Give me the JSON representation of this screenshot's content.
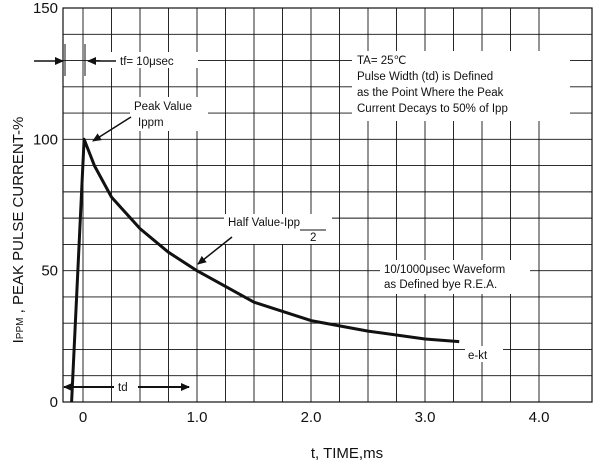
{
  "chart_data": {
    "type": "line",
    "xlabel": "t, TIME,ms",
    "ylabel_main": "PPM",
    "ylabel_prefix": "I",
    "ylabel_suffix": " , PEAK PULSE CURRENT-%",
    "xlim": [
      -0.15,
      4.0
    ],
    "ylim": [
      0,
      150
    ],
    "x_ticks": [
      0,
      1,
      2,
      3,
      4
    ],
    "x_tick_labels": [
      "0",
      "1.0",
      "2.0",
      "3.0",
      "4.0"
    ],
    "y_ticks": [
      0,
      50,
      100,
      150
    ],
    "y_tick_labels": [
      "0",
      "50",
      "100",
      "150"
    ],
    "grid": true,
    "series": [
      {
        "x": [
          -0.1,
          0.01,
          0.1,
          0.25,
          0.5,
          0.75,
          1.0,
          1.5,
          2.0,
          2.5,
          3.0,
          3.3
        ],
        "values": [
          0,
          100,
          90,
          78,
          66,
          57,
          50,
          38,
          31,
          27,
          24,
          23
        ]
      }
    ],
    "annotations": {
      "tf": "tf= 10μsec",
      "ta": "TA= 25℃",
      "pw1": "Pulse Width (td) is Defined",
      "pw2": "as the Point Where the Peak",
      "pw3": "Current Decays to 50% of Ipp",
      "peak1": "Peak Value",
      "peak2": "Ippm",
      "half1": "Half Value-Ipp",
      "half2": "2",
      "wave1": "10/1000μsec Waveform",
      "wave2": "as Defined bye R.E.A.",
      "ekt": "e-kt",
      "td": "td"
    }
  }
}
